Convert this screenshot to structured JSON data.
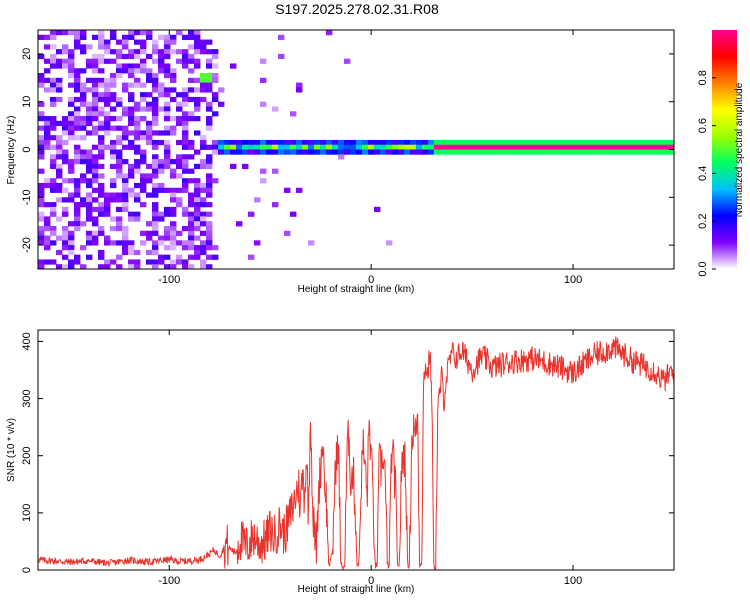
{
  "title": "S197.2025.278.02.31.R08",
  "colors": {
    "spectrum_line": "#e8342c",
    "frame": "#000000",
    "background": "#ffffff"
  },
  "chart_data": [
    {
      "type": "heatmap",
      "name": "spectrogram",
      "xlabel": "Height of straight line (km)",
      "ylabel": "Frequency (Hz)",
      "xlim": [
        -165,
        150
      ],
      "ylim": [
        -25,
        25
      ],
      "xticks": [
        -100,
        0,
        100
      ],
      "xtick_labels": [
        "-100",
        "0",
        "100"
      ],
      "yticks": [
        -20,
        -10,
        0,
        10,
        20
      ],
      "ytick_labels": [
        "-20",
        "-10",
        "0",
        "10",
        "20"
      ],
      "features": {
        "noise_region_x": [
          -165,
          -75
        ],
        "dense_noise_x": [
          -165,
          -80
        ],
        "signal_line_freq": 0.5,
        "signal_onset_x": -75,
        "strong_signal_x": [
          30,
          150
        ],
        "strong_signal_amplitude": 1.0,
        "hot_spot": {
          "x": -82,
          "freq": 15,
          "amplitude": 0.5
        }
      },
      "colorbar": {
        "label": "Normalized spectral amplitude",
        "range": [
          0,
          1
        ],
        "ticks": [
          "0.0",
          "0.2",
          "0.4",
          "0.6",
          "0.8"
        ],
        "colors": [
          "#ffffff",
          "#8000ff",
          "#0000ff",
          "#00c0ff",
          "#00ff60",
          "#a0ff00",
          "#ffff00",
          "#ff8000",
          "#ff0000",
          "#ff0090"
        ]
      }
    },
    {
      "type": "line",
      "name": "snr",
      "xlabel": "Height of straight line (km)",
      "ylabel": "SNR (10 * v/v)",
      "xlim": [
        -165,
        150
      ],
      "ylim": [
        0,
        420
      ],
      "xticks": [
        -100,
        0,
        100
      ],
      "xtick_labels": [
        "-100",
        "0",
        "100"
      ],
      "yticks": [
        0,
        100,
        200,
        300,
        400
      ],
      "ytick_labels": [
        "0",
        "100",
        "200",
        "300",
        "400"
      ],
      "series": [
        {
          "name": "SNR",
          "x": [
            -165,
            -150,
            -140,
            -130,
            -120,
            -110,
            -100,
            -95,
            -90,
            -85,
            -80,
            -78,
            -75,
            -72,
            -70,
            -67,
            -65,
            -62,
            -60,
            -58,
            -55,
            -52,
            -50,
            -48,
            -45,
            -43,
            -40,
            -38,
            -36,
            -35,
            -34,
            -33,
            -32,
            -31,
            -30,
            -29,
            -28,
            -27,
            -26,
            -25,
            -24,
            -23,
            -22,
            -21,
            -20,
            -19,
            -18,
            -17,
            -16,
            -15,
            -14,
            -13,
            -12,
            -11,
            -10,
            -9,
            -8,
            -7,
            -6,
            -5,
            -4,
            -3,
            -2,
            -1,
            0,
            1,
            2,
            3,
            4,
            5,
            6,
            7,
            8,
            9,
            10,
            11,
            12,
            13,
            14,
            15,
            16,
            17,
            18,
            19,
            20,
            21,
            22,
            23,
            24,
            25,
            26,
            27,
            28,
            29,
            30,
            31,
            32,
            33,
            34,
            35,
            36,
            37,
            38,
            40,
            42,
            45,
            50,
            55,
            60,
            70,
            80,
            90,
            100,
            110,
            120,
            130,
            140,
            145,
            148,
            150
          ],
          "values": [
            18,
            14,
            16,
            12,
            17,
            14,
            18,
            15,
            16,
            18,
            28,
            35,
            25,
            45,
            38,
            30,
            55,
            40,
            48,
            60,
            45,
            52,
            70,
            58,
            80,
            62,
            95,
            120,
            150,
            110,
            170,
            130,
            200,
            90,
            285,
            110,
            60,
            40,
            140,
            180,
            230,
            160,
            110,
            8,
            15,
            40,
            150,
            215,
            190,
            10,
            5,
            8,
            200,
            240,
            150,
            175,
            120,
            9,
            12,
            150,
            220,
            180,
            130,
            260,
            200,
            120,
            6,
            8,
            190,
            175,
            210,
            160,
            10,
            8,
            200,
            190,
            150,
            8,
            12,
            170,
            210,
            190,
            8,
            10,
            220,
            250,
            230,
            280,
            10,
            12,
            330,
            360,
            340,
            380,
            320,
            8,
            6,
            280,
            310,
            340,
            295,
            330,
            350,
            380,
            370,
            385,
            350,
            375,
            355,
            365,
            370,
            360,
            345,
            375,
            390,
            365,
            350,
            330,
            345,
            340
          ]
        }
      ]
    }
  ]
}
